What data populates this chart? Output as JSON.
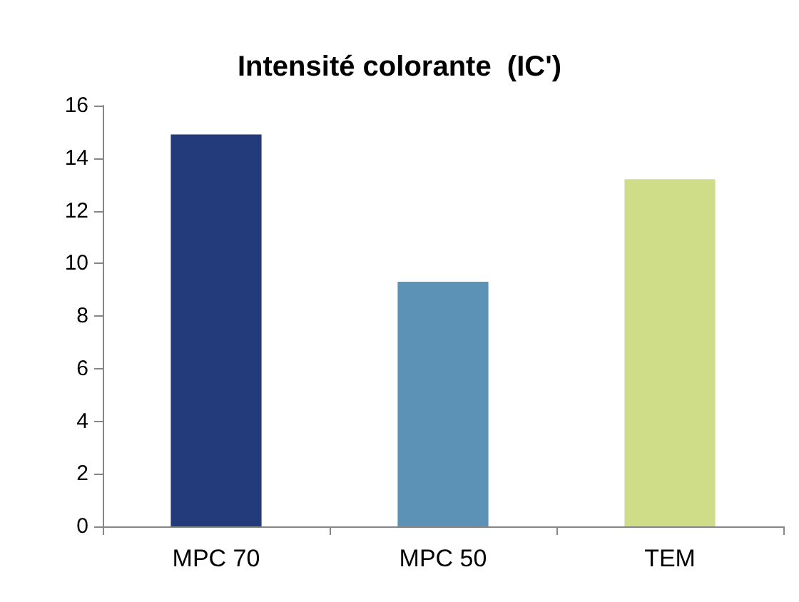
{
  "chart_data": {
    "type": "bar",
    "title": "Intensité colorante  (IC')",
    "categories": [
      "MPC 70",
      "MPC 50",
      "TEM"
    ],
    "values": [
      14.9,
      9.3,
      13.2
    ],
    "colors": [
      "#233a7b",
      "#5b92b6",
      "#cfdd88"
    ],
    "ylim": [
      0,
      16
    ],
    "yticks": [
      0,
      2,
      4,
      6,
      8,
      10,
      12,
      14,
      16
    ],
    "grid": false
  }
}
